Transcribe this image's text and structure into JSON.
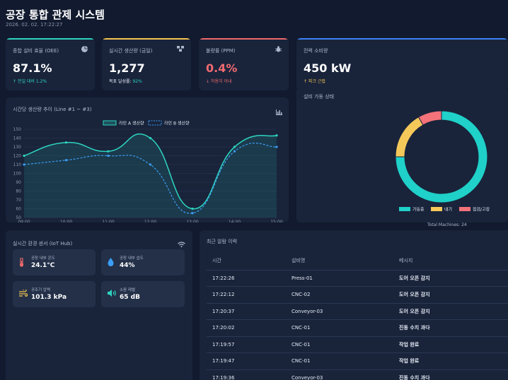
{
  "header": {
    "title": "공장 통합 관제 시스템",
    "datetime": "2026. 02. 02. 17:22:27"
  },
  "kpis": [
    {
      "label": "종합 설비 효율 (OEE)",
      "icon": "pie-chart-icon",
      "value": "87.1%",
      "sub": "↑ 전일 대비 1.2%",
      "accent": "#2dd4bf",
      "value_color": "#ffffff",
      "sub_color": "#2dd4bf"
    },
    {
      "label": "실시간 생산량 (금일)",
      "icon": "boxes-icon",
      "value": "1,277",
      "sub_prefix": "목표 달성률: ",
      "sub_value": "92%",
      "accent": "#f5c451",
      "value_color": "#ffffff",
      "sub_color": "#2dd4bf"
    },
    {
      "label": "불량률 (PPM)",
      "icon": "bug-icon",
      "value": "0.4%",
      "sub": "↓ 허용치 이내",
      "accent": "#ef6a6a",
      "value_color": "#f06a70",
      "sub_color": "#ef6a6a"
    },
    {
      "label": "전력 소비량",
      "icon": "",
      "value": "450 kW",
      "sub": "↑ 피크 근접",
      "accent": "#3b82f6",
      "value_color": "#ffffff",
      "sub_color": "#f5c451"
    }
  ],
  "line_panel": {
    "title": "시간당 생산량 추이 (Line #1 ~ #3)",
    "icon": "bar-chart-icon"
  },
  "donut_panel": {
    "title": "설비 가동 상태",
    "footer": "Total Machines: 24"
  },
  "sensor_panel": {
    "title": "실시간 환경 센서 (IoT Hub)",
    "icon": "wifi-icon",
    "items": [
      {
        "label": "공장 내부 온도",
        "value": "24.1°C",
        "icon": "thermometer-icon",
        "color": "#ef6a6a"
      },
      {
        "label": "공장 내부 습도",
        "value": "44%",
        "icon": "droplet-icon",
        "color": "#3b9df5"
      },
      {
        "label": "공조기 압력",
        "value": "101.3 kPa",
        "icon": "wind-icon",
        "color": "#f5c451"
      },
      {
        "label": "소음 레벨",
        "value": "65 dB",
        "icon": "volume-icon",
        "color": "#2dd4bf"
      }
    ]
  },
  "alarm_panel": {
    "title": "최근 알람 이력",
    "columns": [
      "시간",
      "설비명",
      "메시지"
    ],
    "rows": [
      [
        "17:22:26",
        "Press-01",
        "도어 오픈 감지"
      ],
      [
        "17:22:12",
        "CNC-02",
        "도어 오픈 감지"
      ],
      [
        "17:20:37",
        "Conveyor-03",
        "도어 오픈 감지"
      ],
      [
        "17:20:02",
        "CNC-01",
        "진동 수치 과다"
      ],
      [
        "17:19:57",
        "CNC-01",
        "작업 완료"
      ],
      [
        "17:19:47",
        "CNC-01",
        "작업 완료"
      ],
      [
        "17:19:36",
        "Conveyor-03",
        "진동 수치 과다"
      ]
    ]
  },
  "chart_data": [
    {
      "type": "line",
      "x": [
        "09:00",
        "10:00",
        "11:00",
        "12:00",
        "13:00",
        "14:00",
        "15:00"
      ],
      "x_tick_labels": [
        "09:00",
        "10:00",
        "11:00",
        "12:00",
        "13:00",
        "14:00",
        "15:00"
      ],
      "ylim": [
        50,
        150
      ],
      "y_ticks": [
        50,
        60,
        70,
        80,
        90,
        100,
        110,
        120,
        130,
        140,
        150
      ],
      "grid": true,
      "legend_position": "top-center",
      "series": [
        {
          "name": "라인 A 생산량",
          "x": [
            "09:00",
            "10:00",
            "11:00",
            "12:00",
            "13:00",
            "14:00",
            "15:00"
          ],
          "values": [
            120,
            135,
            125,
            140,
            60,
            130,
            143
          ],
          "color": "#2dd4bf",
          "style": "solid",
          "filled": true
        },
        {
          "name": "라인 B 생산량",
          "x": [
            "09:00",
            "10:00",
            "11:00",
            "12:00",
            "13:00",
            "14:00",
            "15:00"
          ],
          "values": [
            110,
            115,
            120,
            110,
            55,
            125,
            130
          ],
          "color": "#3b9df5",
          "style": "dashed",
          "filled": false
        }
      ]
    },
    {
      "type": "pie",
      "donut": true,
      "legend_position": "bottom",
      "slices": [
        {
          "label": "가동중",
          "value": 18,
          "color": "#1fd1c8"
        },
        {
          "label": "대기",
          "value": 4,
          "color": "#f5c85a"
        },
        {
          "label": "점검/고장",
          "value": 2,
          "color": "#f4737a"
        }
      ]
    }
  ]
}
